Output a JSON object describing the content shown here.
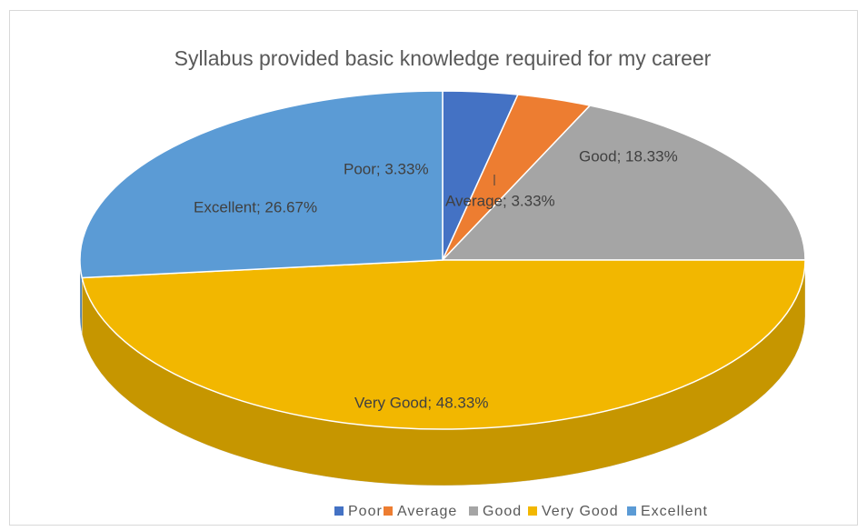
{
  "chart_data": {
    "type": "pie",
    "title": "Syllabus provided basic knowledge required for my career",
    "categories": [
      "Poor",
      "Average",
      "Good",
      "Very Good",
      "Excellent"
    ],
    "values": [
      3.33,
      3.33,
      18.33,
      48.33,
      26.67
    ],
    "value_labels": [
      "Poor; 3.33%",
      "Average; 3.33%",
      "Good; 18.33%",
      "Very Good; 48.33%",
      "Excellent; 26.67%"
    ],
    "colors": [
      "#4472c4",
      "#ed7d31",
      "#a5a5a5",
      "#f2b700",
      "#5b9bd5"
    ],
    "legend": "bottom"
  }
}
